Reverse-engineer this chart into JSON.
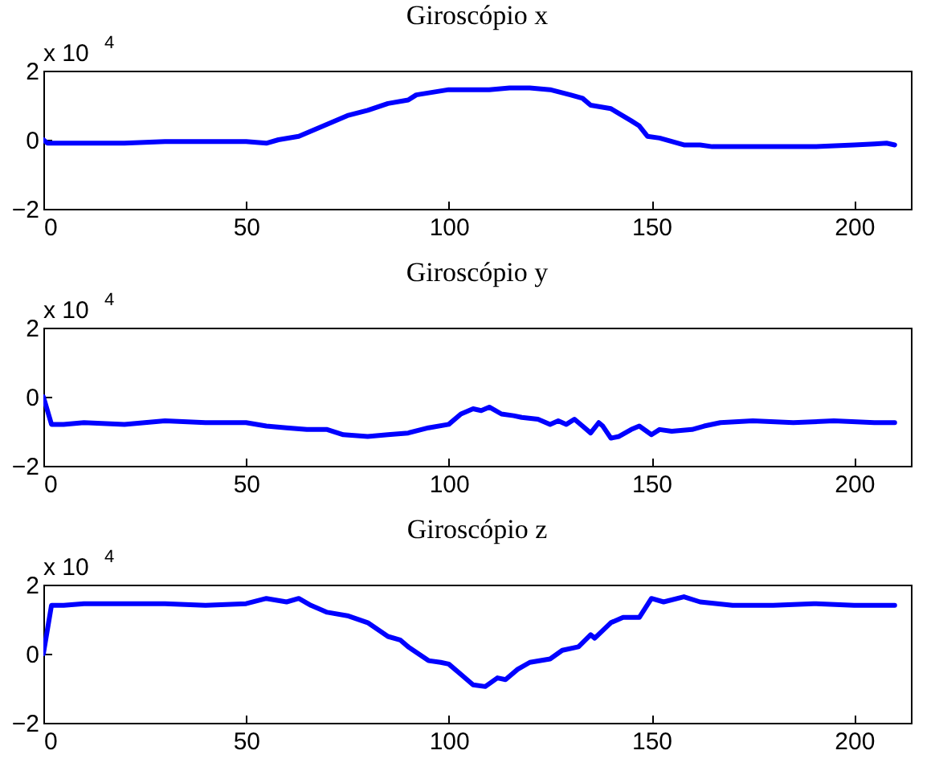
{
  "chart_data": [
    {
      "type": "line",
      "title": "Giroscópio x",
      "annotations": [
        "x 10$^{4}$"
      ],
      "xlim": [
        0,
        214
      ],
      "ylim": [
        -2,
        2
      ],
      "xticks": [
        0,
        50,
        100,
        150,
        200
      ],
      "yticks": [
        -2,
        0,
        2
      ],
      "x": [
        0,
        1,
        10,
        20,
        30,
        40,
        50,
        55,
        58,
        63,
        70,
        75,
        80,
        85,
        90,
        92,
        100,
        105,
        110,
        115,
        120,
        125,
        130,
        133,
        135,
        140,
        145,
        147,
        149,
        152,
        155,
        158,
        162,
        165,
        170,
        180,
        190,
        200,
        205,
        208,
        210
      ],
      "series": [
        {
          "color": "#0000ff",
          "values": [
            0,
            -0.1,
            -0.1,
            -0.1,
            -0.05,
            -0.05,
            -0.05,
            -0.1,
            0,
            0.1,
            0.45,
            0.7,
            0.85,
            1.05,
            1.15,
            1.3,
            1.45,
            1.45,
            1.45,
            1.5,
            1.5,
            1.45,
            1.3,
            1.2,
            1.0,
            0.9,
            0.55,
            0.4,
            0.1,
            0.05,
            -0.05,
            -0.15,
            -0.15,
            -0.2,
            -0.2,
            -0.2,
            -0.2,
            -0.15,
            -0.12,
            -0.1,
            -0.15
          ]
        }
      ]
    },
    {
      "type": "line",
      "title": "Giroscópio y",
      "annotations": [
        "x 10$^{4}$"
      ],
      "xlim": [
        0,
        214
      ],
      "ylim": [
        -2,
        2
      ],
      "xticks": [
        0,
        50,
        100,
        150,
        200
      ],
      "yticks": [
        -2,
        0,
        2
      ],
      "x": [
        0,
        2,
        5,
        10,
        20,
        30,
        40,
        50,
        55,
        60,
        65,
        70,
        74,
        80,
        85,
        90,
        95,
        100,
        103,
        106,
        108,
        110,
        113,
        116,
        118,
        122,
        125,
        127,
        129,
        131,
        133,
        135,
        137,
        138,
        140,
        142,
        145,
        147,
        150,
        152,
        155,
        160,
        163,
        167,
        175,
        185,
        195,
        205,
        210
      ],
      "series": [
        {
          "color": "#0000ff",
          "values": [
            0,
            -0.8,
            -0.8,
            -0.75,
            -0.8,
            -0.7,
            -0.75,
            -0.75,
            -0.85,
            -0.9,
            -0.95,
            -0.95,
            -1.1,
            -1.15,
            -1.1,
            -1.05,
            -0.9,
            -0.8,
            -0.5,
            -0.35,
            -0.4,
            -0.3,
            -0.5,
            -0.55,
            -0.6,
            -0.65,
            -0.8,
            -0.7,
            -0.8,
            -0.65,
            -0.85,
            -1.05,
            -0.75,
            -0.85,
            -1.2,
            -1.15,
            -0.95,
            -0.85,
            -1.1,
            -0.95,
            -1.0,
            -0.95,
            -0.85,
            -0.75,
            -0.7,
            -0.75,
            -0.7,
            -0.75,
            -0.75
          ]
        }
      ]
    },
    {
      "type": "line",
      "title": "Giroscópio z",
      "annotations": [
        "x 10$^{4}$"
      ],
      "xlim": [
        0,
        214
      ],
      "ylim": [
        -2,
        2
      ],
      "xticks": [
        0,
        50,
        100,
        150,
        200
      ],
      "yticks": [
        -2,
        0,
        2
      ],
      "x": [
        0,
        2,
        5,
        10,
        20,
        30,
        40,
        50,
        55,
        60,
        63,
        66,
        70,
        75,
        80,
        85,
        88,
        90,
        95,
        98,
        100,
        103,
        106,
        109,
        112,
        114,
        117,
        120,
        125,
        128,
        132,
        135,
        136,
        140,
        143,
        147,
        150,
        153,
        158,
        162,
        170,
        180,
        190,
        200,
        210
      ],
      "series": [
        {
          "color": "#0000ff",
          "values": [
            0,
            1.4,
            1.4,
            1.45,
            1.45,
            1.45,
            1.4,
            1.45,
            1.6,
            1.5,
            1.6,
            1.4,
            1.2,
            1.1,
            0.9,
            0.5,
            0.4,
            0.2,
            -0.2,
            -0.25,
            -0.3,
            -0.6,
            -0.9,
            -0.95,
            -0.7,
            -0.75,
            -0.45,
            -0.25,
            -0.15,
            0.1,
            0.2,
            0.55,
            0.45,
            0.9,
            1.05,
            1.05,
            1.6,
            1.5,
            1.65,
            1.5,
            1.4,
            1.4,
            1.45,
            1.4,
            1.4
          ]
        }
      ]
    }
  ]
}
